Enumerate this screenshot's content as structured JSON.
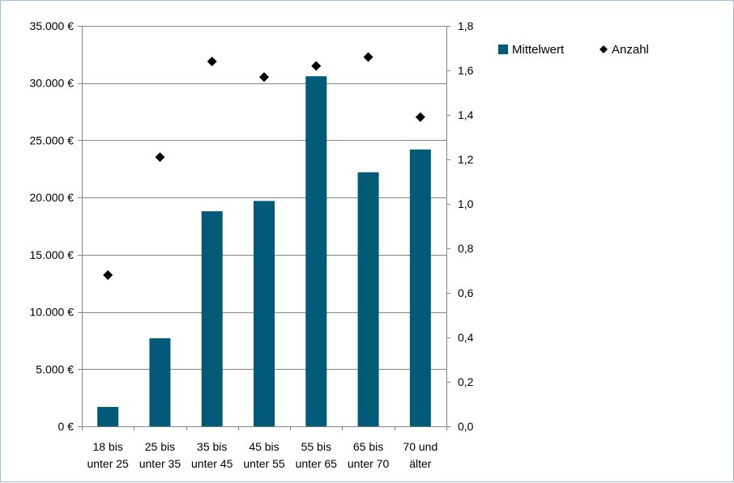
{
  "chart_data": {
    "type": "bar",
    "categories": [
      [
        "18 bis",
        "unter 25"
      ],
      [
        "25 bis",
        "unter 35"
      ],
      [
        "35 bis",
        "unter 45"
      ],
      [
        "45 bis",
        "unter 55"
      ],
      [
        "55 bis",
        "unter 65"
      ],
      [
        "65 bis",
        "unter 70"
      ],
      [
        "70 und",
        "älter"
      ]
    ],
    "series": [
      {
        "name": "Mittelwert",
        "type": "bar",
        "axis": "left",
        "color": "#005a78",
        "values": [
          1700,
          7700,
          18800,
          19700,
          30600,
          22200,
          24200
        ]
      },
      {
        "name": "Anzahl",
        "type": "scatter",
        "axis": "right",
        "marker": "diamond",
        "color": "#000000",
        "values": [
          0.68,
          1.21,
          1.64,
          1.57,
          1.62,
          1.66,
          1.39
        ]
      }
    ],
    "y_left": {
      "ylim": [
        0,
        35000
      ],
      "ticks": [
        0,
        5000,
        10000,
        15000,
        20000,
        25000,
        30000,
        35000
      ],
      "tick_labels": [
        "0 €",
        "5.000 €",
        "10.000 €",
        "15.000 €",
        "20.000 €",
        "25.000 €",
        "30.000 €",
        "35.000 €"
      ]
    },
    "y_right": {
      "ylim": [
        0,
        1.8
      ],
      "ticks": [
        0,
        0.2,
        0.4,
        0.6,
        0.8,
        1.0,
        1.2,
        1.4,
        1.6,
        1.8
      ],
      "tick_labels": [
        "0,0",
        "0,2",
        "0,4",
        "0,6",
        "0,8",
        "1,0",
        "1,2",
        "1,4",
        "1,6",
        "1,8"
      ]
    },
    "grid": true,
    "legend": {
      "placement": "right",
      "entries": [
        "Mittelwert",
        "Anzahl"
      ]
    }
  }
}
